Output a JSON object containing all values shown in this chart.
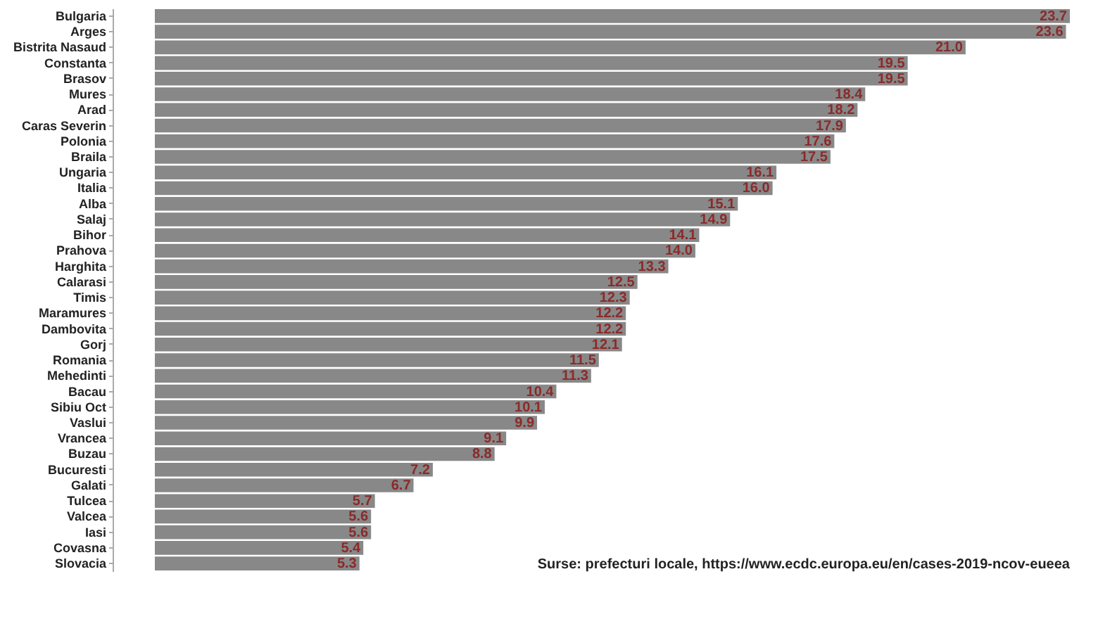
{
  "chart_data": {
    "type": "bar",
    "orientation": "horizontal",
    "grid": false,
    "value_labels": [
      "23.7",
      "23.6",
      "21.0",
      "19.5",
      "19.5",
      "18.4",
      "18.2",
      "17.9",
      "17.6",
      "17.5",
      "16.1",
      "16.0",
      "15.1",
      "14.9",
      "14.1",
      "14.0",
      "13.3",
      "12.5",
      "12.3",
      "12.2",
      "12.2",
      "12.1",
      "11.5",
      "11.3",
      "10.4",
      "10.1",
      "9.9",
      "9.1",
      "8.8",
      "7.2",
      "6.7",
      "5.7",
      "5.6",
      "5.6",
      "5.4",
      "5.3"
    ],
    "categories": [
      "Bulgaria",
      "Arges",
      "Bistrita Nasaud",
      "Constanta",
      "Brasov",
      "Mures",
      "Arad",
      "Caras Severin",
      "Polonia",
      "Braila",
      "Ungaria",
      "Italia",
      "Alba",
      "Salaj",
      "Bihor",
      "Prahova",
      "Harghita",
      "Calarasi",
      "Timis",
      "Maramures",
      "Dambovita",
      "Gorj",
      "Romania",
      "Mehedinti",
      "Bacau",
      "Sibiu Oct",
      "Vaslui",
      "Vrancea",
      "Buzau",
      "Bucuresti",
      "Galati",
      "Tulcea",
      "Valcea",
      "Iasi",
      "Covasna",
      "Slovacia"
    ],
    "values": [
      23.7,
      23.6,
      21.0,
      19.5,
      19.5,
      18.4,
      18.2,
      17.9,
      17.6,
      17.5,
      16.1,
      16.0,
      15.1,
      14.9,
      14.1,
      14.0,
      13.3,
      12.5,
      12.3,
      12.2,
      12.2,
      12.1,
      11.5,
      11.3,
      10.4,
      10.1,
      9.9,
      9.1,
      8.8,
      7.2,
      6.7,
      5.7,
      5.6,
      5.6,
      5.4,
      5.3
    ],
    "color": "#888888",
    "annotations": [
      "Surse: prefecturi locale, https://www.ecdc.europa.eu/en/cases-2019-ncov-eueea"
    ]
  }
}
